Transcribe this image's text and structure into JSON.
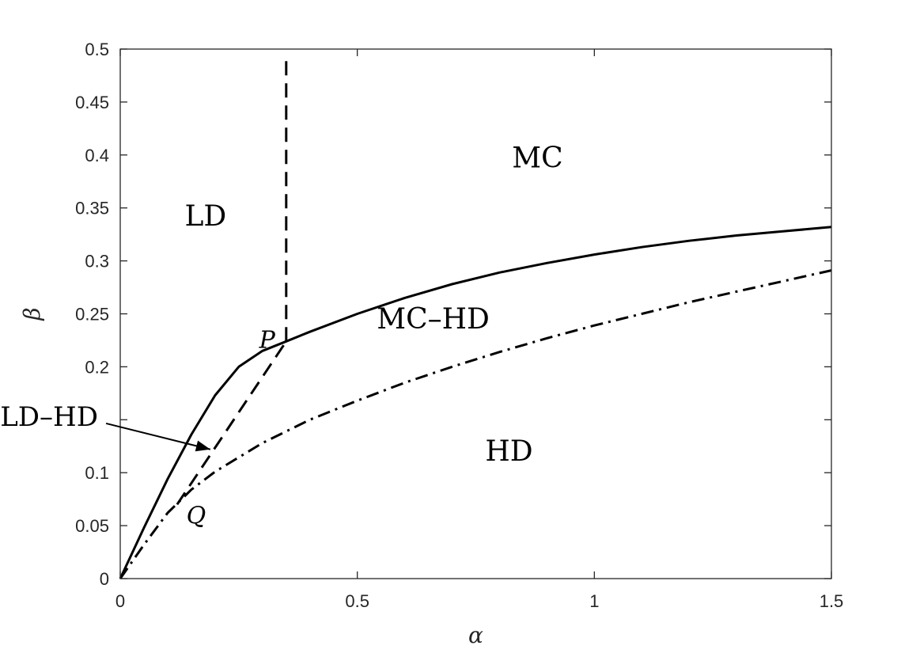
{
  "chart_data": {
    "type": "line",
    "xlabel": "α",
    "ylabel": "β",
    "xlim": [
      0,
      1.5
    ],
    "ylim": [
      0,
      0.5
    ],
    "x_ticks": [
      0,
      0.5,
      1,
      1.5
    ],
    "x_tick_labels": [
      "0",
      "0.5",
      "1",
      "1.5"
    ],
    "y_ticks": [
      0,
      0.05,
      0.1,
      0.15,
      0.2,
      0.25,
      0.3,
      0.35,
      0.4,
      0.45,
      0.5
    ],
    "y_tick_labels": [
      "0",
      "0.05",
      "0.1",
      "",
      "0.2",
      "0.25",
      "0.3",
      "0.35",
      "0.4",
      "0.45",
      "0.5"
    ],
    "grid": false,
    "series": [
      {
        "style": "solid",
        "x": [
          0,
          0.05,
          0.1,
          0.15,
          0.2,
          0.25,
          0.3,
          0.35,
          0.4,
          0.5,
          0.6,
          0.7,
          0.8,
          0.9,
          1.0,
          1.1,
          1.2,
          1.3,
          1.4,
          1.5
        ],
        "y": [
          0,
          0.048,
          0.094,
          0.136,
          0.173,
          0.2,
          0.215,
          0.224,
          0.233,
          0.25,
          0.265,
          0.278,
          0.289,
          0.298,
          0.306,
          0.313,
          0.319,
          0.324,
          0.328,
          0.332
        ]
      },
      {
        "style": "dashed",
        "x": [
          0.35,
          0.35
        ],
        "y": [
          0.224,
          0.495
        ]
      },
      {
        "style": "dashed",
        "x": [
          0.12,
          0.35
        ],
        "y": [
          0.07,
          0.224
        ]
      },
      {
        "style": "dashdot",
        "x": [
          0,
          0.05,
          0.1,
          0.15,
          0.2,
          0.3,
          0.4,
          0.5,
          0.6,
          0.7,
          0.8,
          0.9,
          1.0,
          1.1,
          1.2,
          1.3,
          1.4,
          1.5
        ],
        "y": [
          0,
          0.032,
          0.062,
          0.084,
          0.101,
          0.128,
          0.15,
          0.168,
          0.185,
          0.2,
          0.214,
          0.227,
          0.239,
          0.25,
          0.261,
          0.271,
          0.281,
          0.291
        ]
      }
    ],
    "points": [
      {
        "label": "P",
        "x": 0.35,
        "y": 0.224
      },
      {
        "label": "Q",
        "x": 0.12,
        "y": 0.07
      }
    ],
    "regions": [
      {
        "label": "LD",
        "x": 0.18,
        "y": 0.34
      },
      {
        "label": "MC",
        "x": 0.88,
        "y": 0.395
      },
      {
        "label": "MC–HD",
        "x": 0.66,
        "y": 0.243
      },
      {
        "label": "HD",
        "x": 0.82,
        "y": 0.118
      }
    ],
    "annotations": [
      {
        "label": "LD–HD",
        "x": -0.15,
        "y": 0.151,
        "arrow_to_x": 0.19,
        "arrow_to_y": 0.122
      }
    ]
  }
}
